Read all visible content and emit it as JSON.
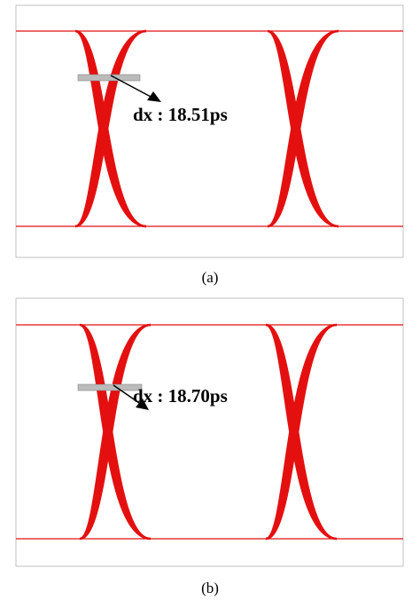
{
  "panels": [
    {
      "annotation": "dx : 18.51ps",
      "caption": "(a)"
    },
    {
      "annotation": "dx : 18.70ps",
      "caption": "(b)"
    }
  ]
}
